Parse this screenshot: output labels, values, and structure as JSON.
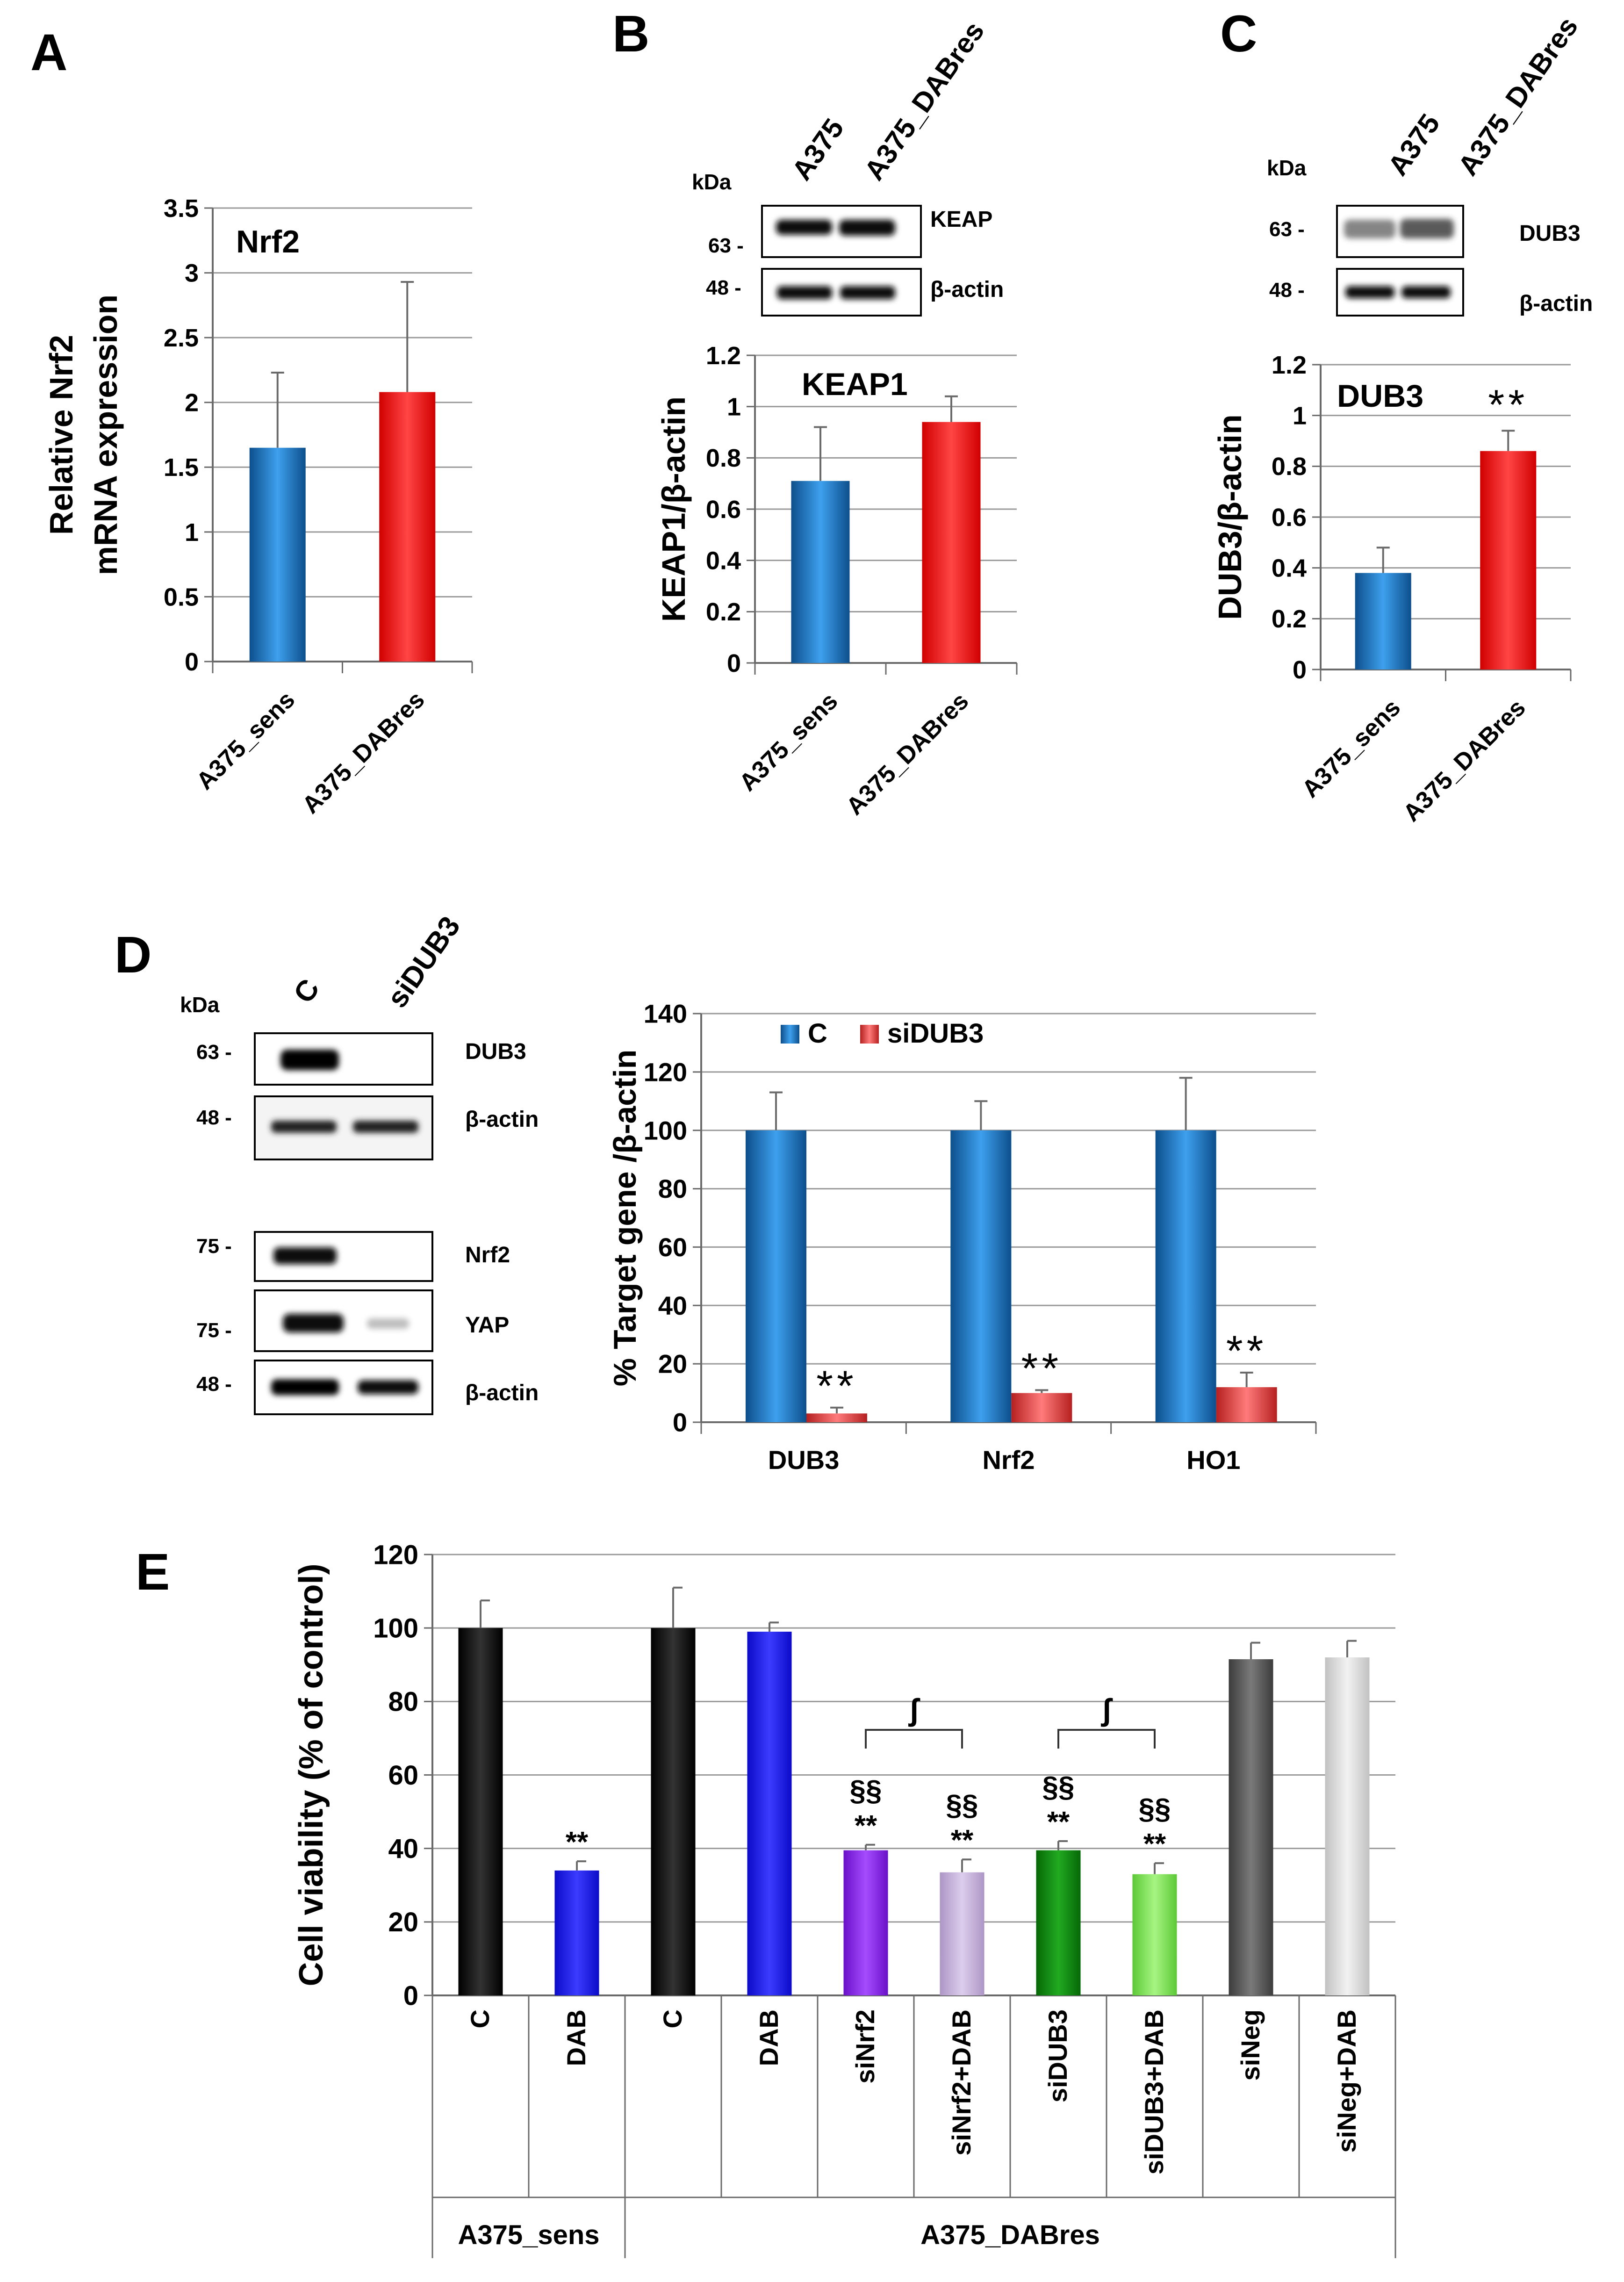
{
  "panels": {
    "A": "A",
    "B": "B",
    "C": "C",
    "D": "D",
    "E": "E"
  },
  "colors": {
    "blue": "#1f6fb7",
    "red": "#ff1a1a",
    "black": "#000000",
    "royal_blue": "#1414f0",
    "purple": "#8a1ef0",
    "lavender": "#c4b0d8",
    "green": "#0d8a0d",
    "light_green": "#7ee055",
    "dark_gray": "#5a5a5a",
    "light_gray": "#d8d8d8",
    "si_red": "#e04545"
  },
  "blots": {
    "kda": "kDa",
    "B": {
      "lanes": [
        "A375",
        "A375_DABres"
      ],
      "rows": [
        {
          "marker": "63 -",
          "label": "KEAP"
        },
        {
          "marker": "48 -",
          "label": "β-actin"
        }
      ]
    },
    "C": {
      "lanes": [
        "A375",
        "A375_DABres"
      ],
      "rows": [
        {
          "marker": "63 -",
          "label": "DUB3"
        },
        {
          "marker": "48 -",
          "label": "β-actin"
        }
      ]
    },
    "D": {
      "lanes": [
        "C",
        "siDUB3"
      ],
      "rows": [
        {
          "marker": "63 -",
          "label": "DUB3"
        },
        {
          "marker": "48 -",
          "label": "β-actin"
        },
        {
          "marker": "75 -",
          "label": "Nrf2"
        },
        {
          "marker": "75 -",
          "label": "YAP"
        },
        {
          "marker": "48 -",
          "label": "β-actin"
        }
      ]
    }
  },
  "chart_data": [
    {
      "id": "A",
      "type": "bar",
      "title": "Nrf2",
      "ylabel": [
        "Relative Nrf2",
        "mRNA expression"
      ],
      "categories": [
        "A375_sens",
        "A375_DABres"
      ],
      "values": [
        1.65,
        2.08
      ],
      "errors": [
        0.58,
        0.85
      ],
      "colors": [
        "blue",
        "red"
      ],
      "ylim": [
        0,
        3.5
      ],
      "yticks": [
        "0",
        "0.5",
        "1",
        "1.5",
        "2",
        "2.5",
        "3",
        "3.5"
      ],
      "significance": [
        "",
        ""
      ]
    },
    {
      "id": "B",
      "type": "bar",
      "title": "KEAP1",
      "ylabel": [
        "KEAP1/β-actin"
      ],
      "categories": [
        "A375_sens",
        "A375_DABres"
      ],
      "values": [
        0.71,
        0.94
      ],
      "errors": [
        0.21,
        0.1
      ],
      "colors": [
        "blue",
        "red"
      ],
      "ylim": [
        0,
        1.2
      ],
      "yticks": [
        "0",
        "0.2",
        "0.4",
        "0.6",
        "0.8",
        "1",
        "1.2"
      ],
      "significance": [
        "",
        ""
      ]
    },
    {
      "id": "C",
      "type": "bar",
      "title": "DUB3",
      "ylabel": [
        "DUB3/β-actin"
      ],
      "categories": [
        "A375_sens",
        "A375_DABres"
      ],
      "values": [
        0.38,
        0.86
      ],
      "errors": [
        0.1,
        0.08
      ],
      "colors": [
        "blue",
        "red"
      ],
      "ylim": [
        0,
        1.2
      ],
      "yticks": [
        "0",
        "0.2",
        "0.4",
        "0.6",
        "0.8",
        "1",
        "1.2"
      ],
      "significance": [
        "",
        "**"
      ]
    },
    {
      "id": "D",
      "type": "bar",
      "ylabel": [
        "% Target gene /β-actin"
      ],
      "categories": [
        "DUB3",
        "Nrf2",
        "HO1"
      ],
      "legend": [
        "C",
        "siDUB3"
      ],
      "series": [
        {
          "name": "C",
          "values": [
            100,
            100,
            100
          ],
          "errors": [
            13,
            10,
            18
          ],
          "color": "blue"
        },
        {
          "name": "siDUB3",
          "values": [
            3,
            10,
            12
          ],
          "errors": [
            2,
            1,
            5
          ],
          "color": "si_red"
        }
      ],
      "significance": [
        "**",
        "**",
        "**"
      ],
      "ylim": [
        0,
        140
      ],
      "yticks": [
        "0",
        "20",
        "40",
        "60",
        "80",
        "100",
        "120",
        "140"
      ]
    },
    {
      "id": "E",
      "type": "bar",
      "ylabel": [
        "Cell viability (%  of control)"
      ],
      "categories": [
        "C",
        "DAB",
        "C",
        "DAB",
        "siNrf2",
        "siNrf2+DAB",
        "siDUB3",
        "siDUB3+DAB",
        "siNeg",
        "siNeg+DAB"
      ],
      "groups": [
        {
          "label": "A375_sens",
          "count": 2
        },
        {
          "label": "A375_DABres",
          "count": 8
        }
      ],
      "values": [
        100,
        34,
        100,
        99,
        39.5,
        33.5,
        39.5,
        33,
        91.5,
        92
      ],
      "errors": [
        7.5,
        2.5,
        11,
        2.5,
        1.5,
        3.5,
        2.5,
        3,
        4.5,
        4.5
      ],
      "colors": [
        "black",
        "royal_blue",
        "black",
        "royal_blue",
        "purple",
        "lavender",
        "green",
        "light_green",
        "dark_gray",
        "light_gray"
      ],
      "stars": [
        "",
        "**",
        "",
        "",
        "**",
        "**",
        "**",
        "**",
        "",
        ""
      ],
      "sections": [
        "",
        "",
        "",
        "",
        "§§",
        "§§",
        "§§",
        "§§",
        "",
        ""
      ],
      "brackets": [
        {
          "from": 4,
          "to": 5,
          "label": "ʃ"
        },
        {
          "from": 6,
          "to": 7,
          "label": "ʃ"
        }
      ],
      "ylim": [
        0,
        120
      ],
      "yticks": [
        "0",
        "20",
        "40",
        "60",
        "80",
        "100",
        "120"
      ]
    }
  ]
}
